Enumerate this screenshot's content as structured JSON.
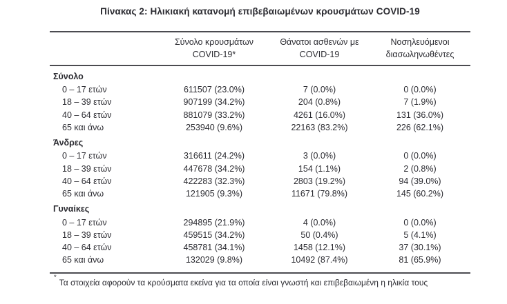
{
  "title": "Πίνακας 2: Ηλικιακή κατανομή επιβεβαιωμένων κρουσμάτων COVID-19",
  "table": {
    "columns": [
      {
        "name": "total-cases",
        "line1": "Σύνολο κρουσμάτων",
        "line2": "COVID-19*"
      },
      {
        "name": "deaths",
        "line1": "Θάνατοι ασθενών με",
        "line2": "COVID-19"
      },
      {
        "name": "intubated",
        "line1": "Νοσηλευόμενοι",
        "line2": "διασωληνωθέντες"
      }
    ],
    "sections": [
      {
        "label": "Σύνολο",
        "rows": [
          {
            "age": "0 – 17 ετών",
            "cases": "611507 (23.0%)",
            "deaths": "7 (0.0%)",
            "intubated": "0 (0.0%)"
          },
          {
            "age": "18 – 39 ετών",
            "cases": "907199 (34.2%)",
            "deaths": "204 (0.8%)",
            "intubated": "7 (1.9%)"
          },
          {
            "age": "40 – 64 ετών",
            "cases": "881079 (33.2%)",
            "deaths": "4261 (16.0%)",
            "intubated": "131 (36.0%)"
          },
          {
            "age": "65 και άνω",
            "cases": "253940 (9.6%)",
            "deaths": "22163 (83.2%)",
            "intubated": "226 (62.1%)"
          }
        ]
      },
      {
        "label": "Άνδρες",
        "rows": [
          {
            "age": "0 – 17 ετών",
            "cases": "316611 (24.2%)",
            "deaths": "3 (0.0%)",
            "intubated": "0 (0.0%)"
          },
          {
            "age": "18 – 39 ετών",
            "cases": "447678 (34.2%)",
            "deaths": "154 (1.1%)",
            "intubated": "2 (0.8%)"
          },
          {
            "age": "40 – 64 ετών",
            "cases": "422283 (32.3%)",
            "deaths": "2803 (19.2%)",
            "intubated": "94 (39.0%)"
          },
          {
            "age": "65 και άνω",
            "cases": "121905 (9.3%)",
            "deaths": "11671 (79.8%)",
            "intubated": "145 (60.2%)"
          }
        ]
      },
      {
        "label": "Γυναίκες",
        "rows": [
          {
            "age": "0 – 17 ετών",
            "cases": "294895 (21.9%)",
            "deaths": "4 (0.0%)",
            "intubated": "0 (0.0%)"
          },
          {
            "age": "18 – 39 ετών",
            "cases": "459515 (34.2%)",
            "deaths": "50 (0.4%)",
            "intubated": "5 (4.1%)"
          },
          {
            "age": "40 – 64 ετών",
            "cases": "458781 (34.1%)",
            "deaths": "1458 (12.1%)",
            "intubated": "37 (30.1%)"
          },
          {
            "age": "65 και άνω",
            "cases": "132029 (9.8%)",
            "deaths": "10492 (87.4%)",
            "intubated": "81 (65.9%)"
          }
        ]
      }
    ]
  },
  "footnote": {
    "marker": "*",
    "text": "Τα στοιχεία αφορούν τα κρούσματα εκείνα για τα οποία είναι γνωστή και επιβεβαιωμένη η ηλικία τους"
  },
  "colors": {
    "text": "#2b2b31",
    "rule": "#4b4b50",
    "background": "#ffffff"
  }
}
